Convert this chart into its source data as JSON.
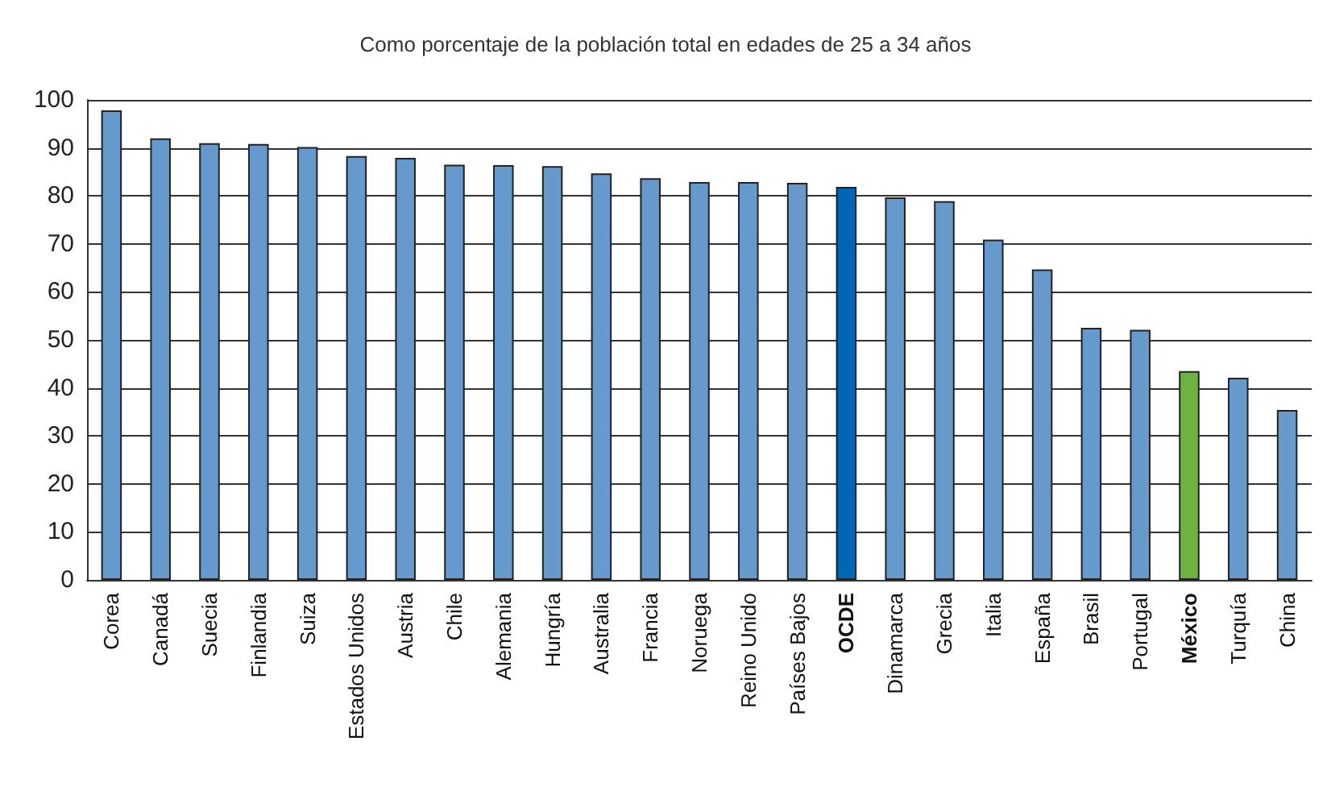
{
  "chart_data": {
    "type": "bar",
    "title": "Como porcentaje de la población total en edades de 25 a 34 años",
    "categories": [
      "Corea",
      "Canadá",
      "Suecia",
      "Finlandia",
      "Suiza",
      "Estados Unidos",
      "Austria",
      "Chile",
      "Alemania",
      "Hungría",
      "Australia",
      "Francia",
      "Noruega",
      "Reino Unido",
      "Países Bajos",
      "OCDE",
      "Dinamarca",
      "Grecia",
      "Italia",
      "España",
      "Brasil",
      "Portugal",
      "México",
      "Turquía",
      "China"
    ],
    "values": [
      97.8,
      92.0,
      91.0,
      90.8,
      90.2,
      88.3,
      87.9,
      86.5,
      86.4,
      86.2,
      84.7,
      83.7,
      82.9,
      82.9,
      82.7,
      81.9,
      79.7,
      78.9,
      70.9,
      64.7,
      52.5,
      52.1,
      43.5,
      42.1,
      35.4
    ],
    "colors": [
      "#6699cc",
      "#6699cc",
      "#6699cc",
      "#6699cc",
      "#6699cc",
      "#6699cc",
      "#6699cc",
      "#6699cc",
      "#6699cc",
      "#6699cc",
      "#6699cc",
      "#6699cc",
      "#6699cc",
      "#6699cc",
      "#6699cc",
      "#0066b3",
      "#6699cc",
      "#6699cc",
      "#6699cc",
      "#6699cc",
      "#6699cc",
      "#6699cc",
      "#6cb33f",
      "#6699cc",
      "#6699cc"
    ],
    "ylim": [
      0,
      100
    ],
    "yticks": [
      0,
      10,
      20,
      30,
      40,
      50,
      60,
      70,
      80,
      90,
      100
    ],
    "grid": "y"
  }
}
